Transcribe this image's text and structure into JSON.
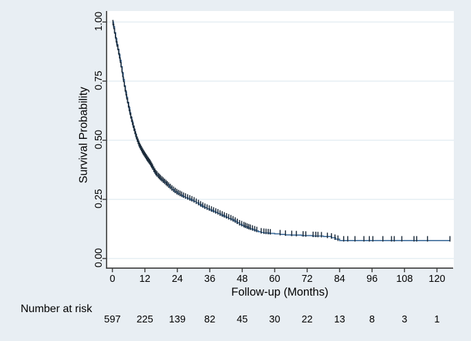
{
  "figure": {
    "background_color": "#e8eef3",
    "plot_background_color": "#ffffff",
    "grid_color": "#dfe9f1",
    "axis_color": "#3f3f3f",
    "curve_color": "#45719e",
    "censor_color": "#1b2a39",
    "text_color": "#000000"
  },
  "chart_data": {
    "type": "line",
    "subtype": "kaplan-meier-survival-step-curve",
    "title": "",
    "xlabel": "Follow-up (Months)",
    "ylabel": "Survival Probability",
    "xlim": [
      0,
      126
    ],
    "ylim": [
      0,
      1.04
    ],
    "grid": true,
    "legend": "none",
    "x_ticks": [
      0,
      12,
      24,
      36,
      48,
      60,
      72,
      84,
      96,
      108,
      120
    ],
    "x_tick_labels": [
      "0",
      "12",
      "24",
      "36",
      "48",
      "60",
      "72",
      "84",
      "96",
      "108",
      "120"
    ],
    "y_ticks": [
      0,
      0.25,
      0.5,
      0.75,
      1
    ],
    "y_tick_labels": [
      "0.00",
      "0.25",
      "0.50",
      "0.75",
      "1.00"
    ],
    "series": [
      {
        "name": "survival",
        "points": [
          [
            0,
            1.0
          ],
          [
            0.4,
            0.98
          ],
          [
            0.8,
            0.955
          ],
          [
            1.2,
            0.93
          ],
          [
            1.6,
            0.905
          ],
          [
            2,
            0.885
          ],
          [
            2.4,
            0.862
          ],
          [
            2.8,
            0.838
          ],
          [
            3.2,
            0.812
          ],
          [
            3.6,
            0.785
          ],
          [
            4,
            0.757
          ],
          [
            4.4,
            0.73
          ],
          [
            4.8,
            0.705
          ],
          [
            5.2,
            0.682
          ],
          [
            5.6,
            0.66
          ],
          [
            6,
            0.638
          ],
          [
            6.4,
            0.616
          ],
          [
            6.8,
            0.596
          ],
          [
            7.2,
            0.578
          ],
          [
            7.6,
            0.56
          ],
          [
            8,
            0.543
          ],
          [
            8.4,
            0.527
          ],
          [
            8.8,
            0.511
          ],
          [
            9.2,
            0.497
          ],
          [
            9.6,
            0.485
          ],
          [
            10,
            0.473
          ],
          [
            10.5,
            0.462
          ],
          [
            11,
            0.451
          ],
          [
            11.5,
            0.441
          ],
          [
            12,
            0.432
          ],
          [
            12.5,
            0.423
          ],
          [
            13,
            0.414
          ],
          [
            13.5,
            0.406
          ],
          [
            14,
            0.398
          ],
          [
            14.5,
            0.388
          ],
          [
            15,
            0.377
          ],
          [
            15.5,
            0.366
          ],
          [
            16,
            0.357
          ],
          [
            16.5,
            0.35
          ],
          [
            17,
            0.344
          ],
          [
            17.5,
            0.338
          ],
          [
            18,
            0.332
          ],
          [
            19,
            0.322
          ],
          [
            20,
            0.312
          ],
          [
            21,
            0.301
          ],
          [
            22,
            0.291
          ],
          [
            23,
            0.282
          ],
          [
            24,
            0.274
          ],
          [
            25,
            0.268
          ],
          [
            26,
            0.262
          ],
          [
            27,
            0.257
          ],
          [
            28,
            0.252
          ],
          [
            29,
            0.247
          ],
          [
            30,
            0.242
          ],
          [
            31,
            0.235
          ],
          [
            32,
            0.228
          ],
          [
            33,
            0.221
          ],
          [
            34,
            0.215
          ],
          [
            35,
            0.21
          ],
          [
            36,
            0.205
          ],
          [
            37,
            0.2
          ],
          [
            38,
            0.195
          ],
          [
            39,
            0.19
          ],
          [
            40,
            0.184
          ],
          [
            41,
            0.179
          ],
          [
            42,
            0.174
          ],
          [
            43,
            0.169
          ],
          [
            44,
            0.164
          ],
          [
            45,
            0.158
          ],
          [
            46,
            0.151
          ],
          [
            47,
            0.144
          ],
          [
            48,
            0.139
          ],
          [
            49,
            0.134
          ],
          [
            50,
            0.129
          ],
          [
            51,
            0.125
          ],
          [
            52,
            0.121
          ],
          [
            53,
            0.117
          ],
          [
            54,
            0.113
          ],
          [
            55,
            0.11
          ],
          [
            56,
            0.108
          ],
          [
            58,
            0.106
          ],
          [
            60,
            0.104
          ],
          [
            62,
            0.102
          ],
          [
            64,
            0.1
          ],
          [
            66,
            0.099
          ],
          [
            70,
            0.097
          ],
          [
            74,
            0.095
          ],
          [
            78,
            0.093
          ],
          [
            81,
            0.088
          ],
          [
            82.5,
            0.082
          ],
          [
            84,
            0.076
          ],
          [
            124.8,
            0.076
          ]
        ]
      }
    ],
    "censor_times": [
      0.2,
      0.5,
      0.8,
      1.1,
      1.4,
      1.7,
      2.0,
      2.3,
      2.6,
      2.9,
      3.2,
      3.5,
      3.8,
      4.1,
      4.4,
      4.7,
      5.0,
      5.3,
      5.6,
      5.9,
      6.2,
      6.5,
      6.8,
      7.1,
      7.4,
      7.7,
      8.0,
      8.3,
      8.6,
      8.9,
      9.2,
      9.5,
      9.8,
      10.1,
      10.4,
      10.7,
      11.0,
      11.3,
      11.6,
      11.9,
      12.2,
      12.5,
      12.8,
      13.1,
      13.4,
      13.7,
      14.0,
      14.3,
      14.6,
      14.9,
      15.3,
      15.7,
      16.1,
      16.5,
      17.0,
      17.4,
      17.8,
      18.3,
      18.8,
      19.3,
      19.8,
      20.3,
      20.8,
      21.4,
      22.0,
      22.6,
      23.2,
      23.8,
      24.4,
      25.0,
      25.6,
      26.3,
      27.0,
      27.8,
      28.6,
      29.4,
      30.2,
      31.0,
      31.8,
      32.6,
      33.4,
      34.2,
      35.0,
      35.8,
      36.6,
      37.4,
      38.2,
      39.0,
      39.8,
      40.6,
      41.4,
      42.2,
      43.0,
      43.8,
      44.6,
      45.4,
      46.2,
      47.0,
      47.8,
      48.6,
      49.2,
      49.8,
      50.4,
      51.0,
      51.8,
      52.6,
      53.4,
      55.0,
      56.0,
      56.8,
      57.6,
      58.4,
      62.0,
      64.0,
      66.3,
      68.0,
      70.5,
      71.5,
      74.2,
      75.2,
      76.0,
      77.3,
      79.5,
      81.0,
      82.3,
      83.4,
      85.5,
      87.0,
      89.7,
      93.0,
      95.0,
      96.3,
      100.0,
      103.2,
      104.2,
      107.0,
      111.5,
      112.5,
      116.5,
      124.8
    ],
    "number_at_risk": {
      "label": "Number at risk",
      "times": [
        0,
        12,
        24,
        36,
        48,
        60,
        72,
        84,
        96,
        108,
        120
      ],
      "counts": [
        "597",
        "225",
        "139",
        "82",
        "45",
        "30",
        "22",
        "13",
        "8",
        "3",
        "1"
      ]
    }
  }
}
